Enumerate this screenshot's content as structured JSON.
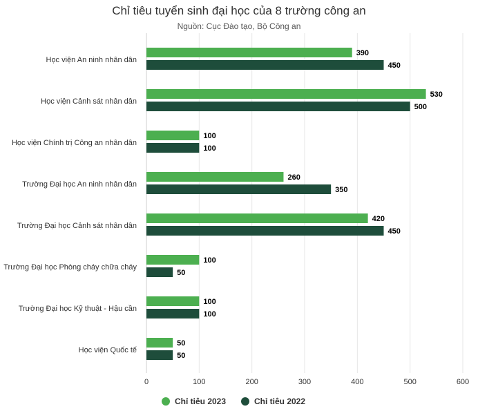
{
  "chart_data": {
    "type": "bar",
    "orientation": "horizontal",
    "title": "Chỉ tiêu tuyển sinh đại học của 8 trường công an",
    "subtitle": "Nguồn: Cục Đào tạo, Bộ Công an",
    "categories": [
      "Học viện An ninh nhân dân",
      "Học viện Cảnh sát nhân dân",
      "Học viện Chính trị Công an nhân dân",
      "Trường Đại học An ninh nhân dân",
      "Trường Đại học Cảnh sát nhân dân",
      "Trường Đại học Phòng cháy chữa cháy",
      "Trường Đại học Kỹ thuật - Hậu cần",
      "Học viện Quốc tế"
    ],
    "series": [
      {
        "name": "Chỉ tiêu 2023",
        "color": "#4caf50",
        "values": [
          390,
          530,
          100,
          260,
          420,
          100,
          100,
          50
        ]
      },
      {
        "name": "Chỉ tiêu 2022",
        "color": "#1e4d3b",
        "values": [
          450,
          500,
          100,
          350,
          450,
          50,
          100,
          50
        ]
      }
    ],
    "xlim": [
      0,
      600
    ],
    "xticks": [
      0,
      100,
      200,
      300,
      400,
      500,
      600
    ],
    "grid": "vertical",
    "legend": "bottom-center",
    "data_labels": true
  }
}
